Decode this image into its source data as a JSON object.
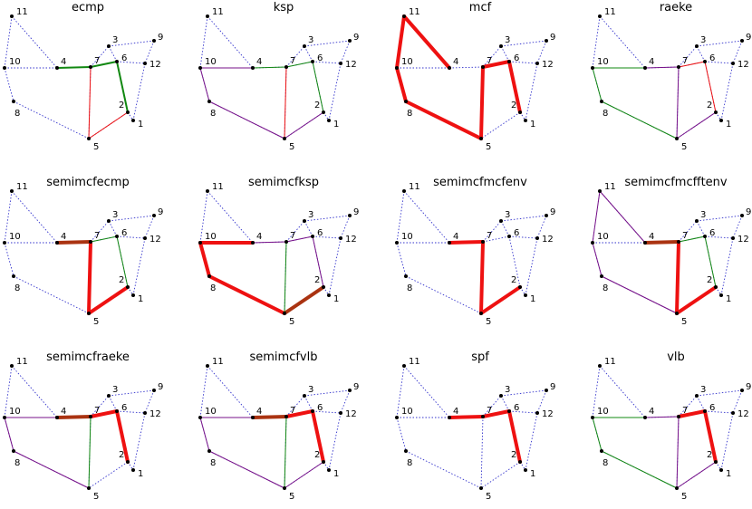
{
  "nodes": [
    "1",
    "2",
    "3",
    "4",
    "5",
    "6",
    "7",
    "8",
    "9",
    "10",
    "11",
    "12"
  ],
  "base_edges": [
    [
      "11",
      "10"
    ],
    [
      "11",
      "4"
    ],
    [
      "10",
      "4"
    ],
    [
      "10",
      "8"
    ],
    [
      "8",
      "5"
    ],
    [
      "4",
      "7"
    ],
    [
      "7",
      "3"
    ],
    [
      "7",
      "6"
    ],
    [
      "7",
      "5"
    ],
    [
      "6",
      "3"
    ],
    [
      "6",
      "2"
    ],
    [
      "6",
      "12"
    ],
    [
      "2",
      "1"
    ],
    [
      "2",
      "5"
    ],
    [
      "3",
      "9"
    ],
    [
      "9",
      "12"
    ],
    [
      "12",
      "1"
    ]
  ],
  "colors": {
    "dotted": "#3333cc",
    "red": "#ee1111",
    "green": "#118811",
    "purple": "#771188",
    "brown": "#aa3311"
  },
  "panels": [
    {
      "title": "ecmp",
      "paths": [
        {
          "edges": [
            [
              "4",
              "7"
            ],
            [
              "7",
              "6"
            ],
            [
              "6",
              "2"
            ]
          ],
          "color": "green",
          "width": 2
        },
        {
          "edges": [
            [
              "7",
              "5"
            ],
            [
              "5",
              "2"
            ]
          ],
          "color": "red",
          "width": 1
        }
      ]
    },
    {
      "title": "ksp",
      "paths": [
        {
          "edges": [
            [
              "10",
              "4"
            ],
            [
              "4",
              "7"
            ],
            [
              "7",
              "6"
            ],
            [
              "6",
              "2"
            ]
          ],
          "color": "green",
          "width": 1
        },
        {
          "edges": [
            [
              "10",
              "4"
            ],
            [
              "10",
              "8"
            ],
            [
              "8",
              "5"
            ],
            [
              "5",
              "2"
            ]
          ],
          "color": "purple",
          "width": 1
        },
        {
          "edges": [
            [
              "7",
              "5"
            ]
          ],
          "color": "red",
          "width": 1
        }
      ]
    },
    {
      "title": "mcf",
      "paths": [
        {
          "edges": [
            [
              "11",
              "4"
            ],
            [
              "11",
              "10"
            ],
            [
              "10",
              "8"
            ],
            [
              "8",
              "5"
            ],
            [
              "5",
              "7"
            ],
            [
              "7",
              "6"
            ],
            [
              "6",
              "2"
            ]
          ],
          "color": "red",
          "width": 4
        }
      ]
    },
    {
      "title": "raeke",
      "paths": [
        {
          "edges": [
            [
              "10",
              "4"
            ],
            [
              "10",
              "8"
            ],
            [
              "8",
              "5"
            ]
          ],
          "color": "green",
          "width": 1
        },
        {
          "edges": [
            [
              "4",
              "7"
            ],
            [
              "7",
              "5"
            ],
            [
              "5",
              "2"
            ]
          ],
          "color": "purple",
          "width": 1
        },
        {
          "edges": [
            [
              "7",
              "6"
            ],
            [
              "6",
              "2"
            ]
          ],
          "color": "red",
          "width": 1
        }
      ]
    },
    {
      "title": "semimcfecmp",
      "paths": [
        {
          "edges": [
            [
              "4",
              "7"
            ]
          ],
          "color": "brown",
          "width": 4
        },
        {
          "edges": [
            [
              "7",
              "5"
            ],
            [
              "5",
              "2"
            ]
          ],
          "color": "red",
          "width": 4
        },
        {
          "edges": [
            [
              "7",
              "6"
            ],
            [
              "6",
              "2"
            ]
          ],
          "color": "green",
          "width": 1
        }
      ]
    },
    {
      "title": "semimcfksp",
      "paths": [
        {
          "edges": [
            [
              "10",
              "4"
            ],
            [
              "10",
              "8"
            ],
            [
              "8",
              "5"
            ]
          ],
          "color": "red",
          "width": 4
        },
        {
          "edges": [
            [
              "5",
              "2"
            ]
          ],
          "color": "brown",
          "width": 4
        },
        {
          "edges": [
            [
              "4",
              "7"
            ],
            [
              "7",
              "6"
            ],
            [
              "6",
              "2"
            ]
          ],
          "color": "purple",
          "width": 1
        },
        {
          "edges": [
            [
              "7",
              "5"
            ]
          ],
          "color": "green",
          "width": 1
        }
      ]
    },
    {
      "title": "semimcfmcfenv",
      "paths": [
        {
          "edges": [
            [
              "4",
              "7"
            ],
            [
              "7",
              "5"
            ],
            [
              "5",
              "2"
            ]
          ],
          "color": "red",
          "width": 4
        }
      ]
    },
    {
      "title": "semimcfmcfftenv",
      "paths": [
        {
          "edges": [
            [
              "11",
              "4"
            ],
            [
              "11",
              "10"
            ],
            [
              "10",
              "8"
            ],
            [
              "8",
              "5"
            ]
          ],
          "color": "purple",
          "width": 1
        },
        {
          "edges": [
            [
              "4",
              "7"
            ]
          ],
          "color": "brown",
          "width": 4
        },
        {
          "edges": [
            [
              "7",
              "5"
            ],
            [
              "5",
              "2"
            ]
          ],
          "color": "red",
          "width": 4
        },
        {
          "edges": [
            [
              "7",
              "6"
            ],
            [
              "6",
              "2"
            ]
          ],
          "color": "green",
          "width": 1
        }
      ]
    },
    {
      "title": "semimcfraeke",
      "paths": [
        {
          "edges": [
            [
              "10",
              "4"
            ],
            [
              "10",
              "8"
            ],
            [
              "8",
              "5"
            ]
          ],
          "color": "purple",
          "width": 1
        },
        {
          "edges": [
            [
              "4",
              "7"
            ]
          ],
          "color": "brown",
          "width": 4
        },
        {
          "edges": [
            [
              "7",
              "6"
            ],
            [
              "6",
              "2"
            ]
          ],
          "color": "red",
          "width": 4
        },
        {
          "edges": [
            [
              "7",
              "5"
            ]
          ],
          "color": "green",
          "width": 1
        }
      ]
    },
    {
      "title": "semimcfvlb",
      "paths": [
        {
          "edges": [
            [
              "10",
              "4"
            ],
            [
              "10",
              "8"
            ],
            [
              "8",
              "5"
            ],
            [
              "5",
              "2"
            ]
          ],
          "color": "purple",
          "width": 1
        },
        {
          "edges": [
            [
              "4",
              "7"
            ]
          ],
          "color": "brown",
          "width": 4
        },
        {
          "edges": [
            [
              "7",
              "6"
            ],
            [
              "6",
              "2"
            ]
          ],
          "color": "red",
          "width": 4
        },
        {
          "edges": [
            [
              "7",
              "5"
            ]
          ],
          "color": "green",
          "width": 1
        }
      ]
    },
    {
      "title": "spf",
      "paths": [
        {
          "edges": [
            [
              "4",
              "7"
            ],
            [
              "7",
              "6"
            ],
            [
              "6",
              "2"
            ]
          ],
          "color": "red",
          "width": 4
        }
      ]
    },
    {
      "title": "vlb",
      "paths": [
        {
          "edges": [
            [
              "10",
              "4"
            ],
            [
              "10",
              "8"
            ],
            [
              "8",
              "5"
            ]
          ],
          "color": "green",
          "width": 1
        },
        {
          "edges": [
            [
              "4",
              "7"
            ]
          ],
          "color": "purple",
          "width": 1
        },
        {
          "edges": [
            [
              "7",
              "5"
            ],
            [
              "5",
              "2"
            ]
          ],
          "color": "purple",
          "width": 1
        },
        {
          "edges": [
            [
              "7",
              "6"
            ],
            [
              "6",
              "2"
            ]
          ],
          "color": "red",
          "width": 4
        }
      ]
    }
  ]
}
